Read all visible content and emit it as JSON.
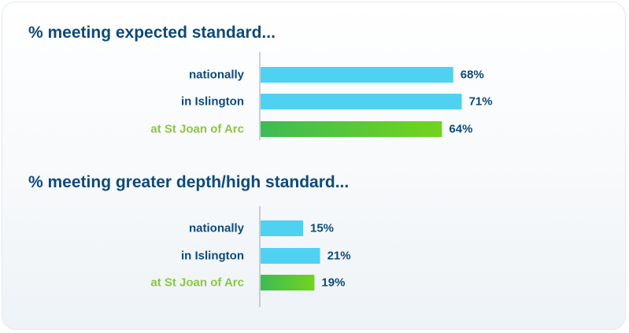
{
  "colors": {
    "title": "#0d4a7a",
    "label_default": "#0d4a7a",
    "label_highlight": "#8cc63f",
    "bar_default": "#4fd2f2",
    "bar_highlight_start": "#3dbb55",
    "bar_highlight_end": "#72d41c",
    "axis": "#9aa5b1"
  },
  "chart_data": [
    {
      "type": "bar",
      "orientation": "horizontal",
      "title": "% meeting expected standard...",
      "categories": [
        "nationally",
        "in Islington",
        "at St Joan of Arc"
      ],
      "values": [
        68,
        71,
        64
      ],
      "value_labels": [
        "68%",
        "71%",
        "64%"
      ],
      "highlight_category": "at St Joan of Arc",
      "xlim": [
        0,
        100
      ],
      "grid": false,
      "legend": "none"
    },
    {
      "type": "bar",
      "orientation": "horizontal",
      "title": "% meeting greater depth/high standard...",
      "categories": [
        "nationally",
        "in Islington",
        "at St Joan of Arc"
      ],
      "values": [
        15,
        21,
        19
      ],
      "value_labels": [
        "15%",
        "21%",
        "19%"
      ],
      "highlight_category": "at St Joan of Arc",
      "xlim": [
        0,
        100
      ],
      "grid": false,
      "legend": "none"
    }
  ]
}
